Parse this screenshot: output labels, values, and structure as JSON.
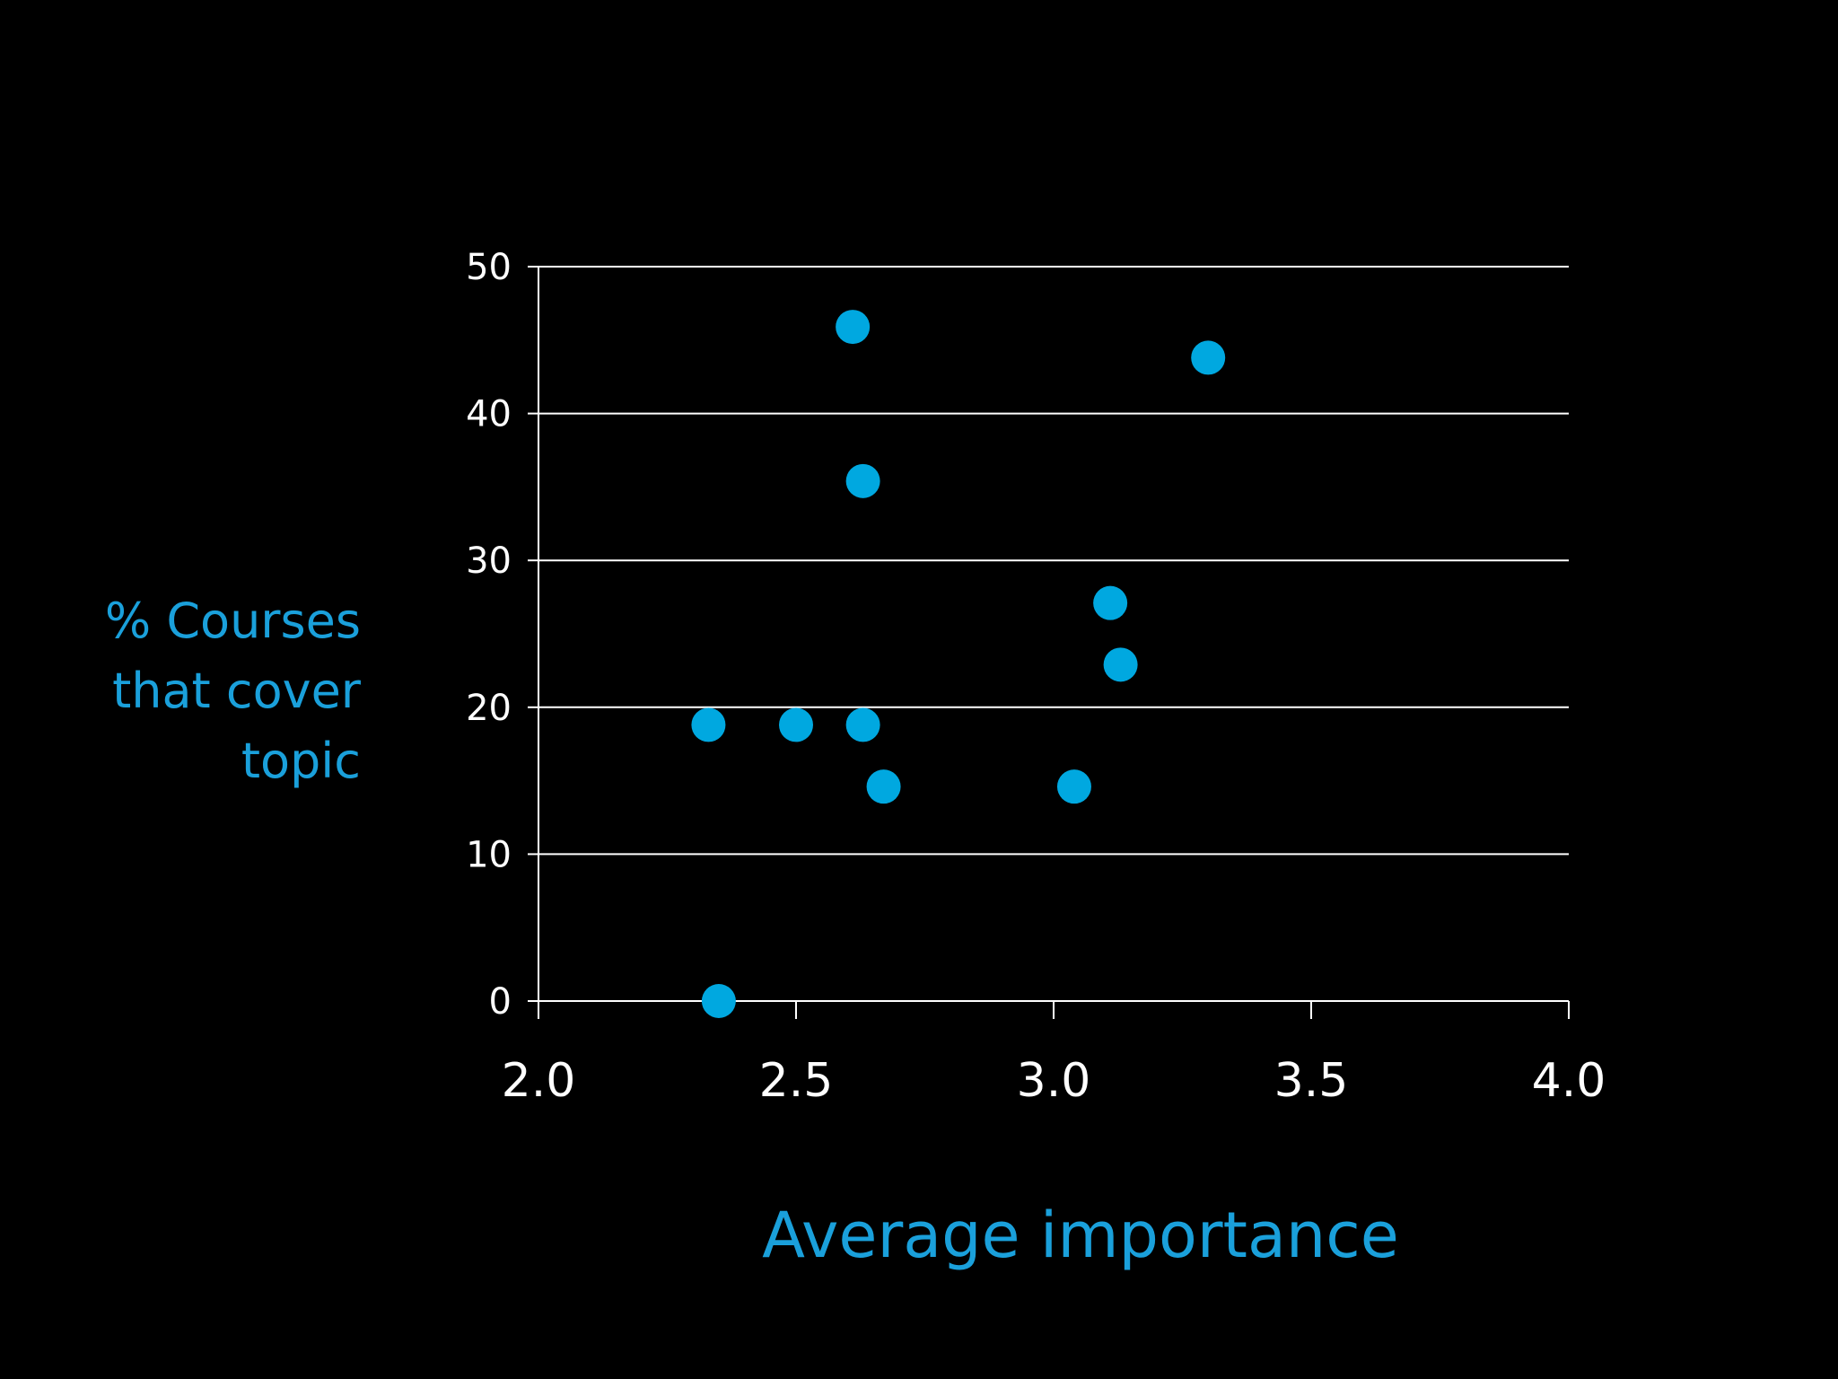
{
  "colors": {
    "background": "#000000",
    "axis": "#ffffff",
    "gridline": "#ffffff",
    "tick_label": "#ffffff",
    "point": "#00a8e0",
    "axis_title": "#1aa0db"
  },
  "chart_data": {
    "type": "scatter",
    "xlabel": "Average importance",
    "ylabel_lines": [
      "% Courses",
      "that cover",
      "topic"
    ],
    "xlim": [
      2.0,
      4.0
    ],
    "ylim": [
      0,
      50
    ],
    "x_ticks": [
      2.0,
      2.5,
      3.0,
      3.5,
      4.0
    ],
    "x_tick_labels": [
      "2.0",
      "2.5",
      "3.0",
      "3.5",
      "4.0"
    ],
    "y_ticks": [
      0,
      10,
      20,
      30,
      40,
      50
    ],
    "y_tick_labels": [
      "0",
      "10",
      "20",
      "30",
      "40",
      "50"
    ],
    "grid": "horizontal",
    "legend": "none",
    "points": [
      {
        "x": 2.61,
        "y": 45.9
      },
      {
        "x": 3.3,
        "y": 43.8
      },
      {
        "x": 2.63,
        "y": 35.4
      },
      {
        "x": 3.11,
        "y": 27.1
      },
      {
        "x": 3.13,
        "y": 22.9
      },
      {
        "x": 2.33,
        "y": 18.8
      },
      {
        "x": 2.5,
        "y": 18.8
      },
      {
        "x": 2.63,
        "y": 18.8
      },
      {
        "x": 2.67,
        "y": 14.6
      },
      {
        "x": 3.04,
        "y": 14.6
      },
      {
        "x": 2.35,
        "y": 0.0
      }
    ]
  }
}
